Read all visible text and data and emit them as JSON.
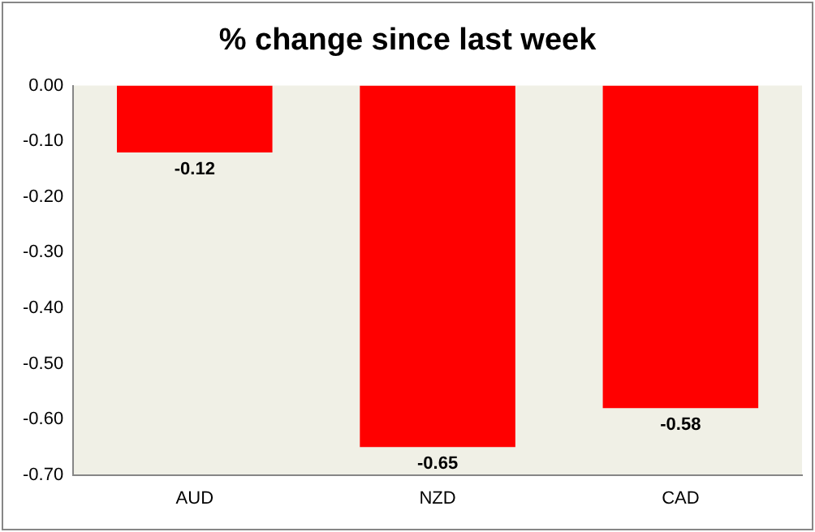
{
  "chart_data": {
    "type": "bar",
    "title": "% change since last week",
    "categories": [
      "AUD",
      "NZD",
      "CAD"
    ],
    "values": [
      -0.12,
      -0.65,
      -0.58
    ],
    "color": "#ff0000",
    "ylim": [
      -0.7,
      0
    ],
    "yticks": [
      {
        "value": 0,
        "label": "0.00"
      },
      {
        "value": -0.1,
        "label": "-0.10"
      },
      {
        "value": -0.2,
        "label": "-0.20"
      },
      {
        "value": -0.3,
        "label": "-0.30"
      },
      {
        "value": -0.4,
        "label": "-0.40"
      },
      {
        "value": -0.5,
        "label": "-0.50"
      },
      {
        "value": -0.6,
        "label": "-0.60"
      },
      {
        "value": -0.7,
        "label": "-0.70"
      }
    ],
    "grid": false,
    "legend": false,
    "data_labels": true
  }
}
